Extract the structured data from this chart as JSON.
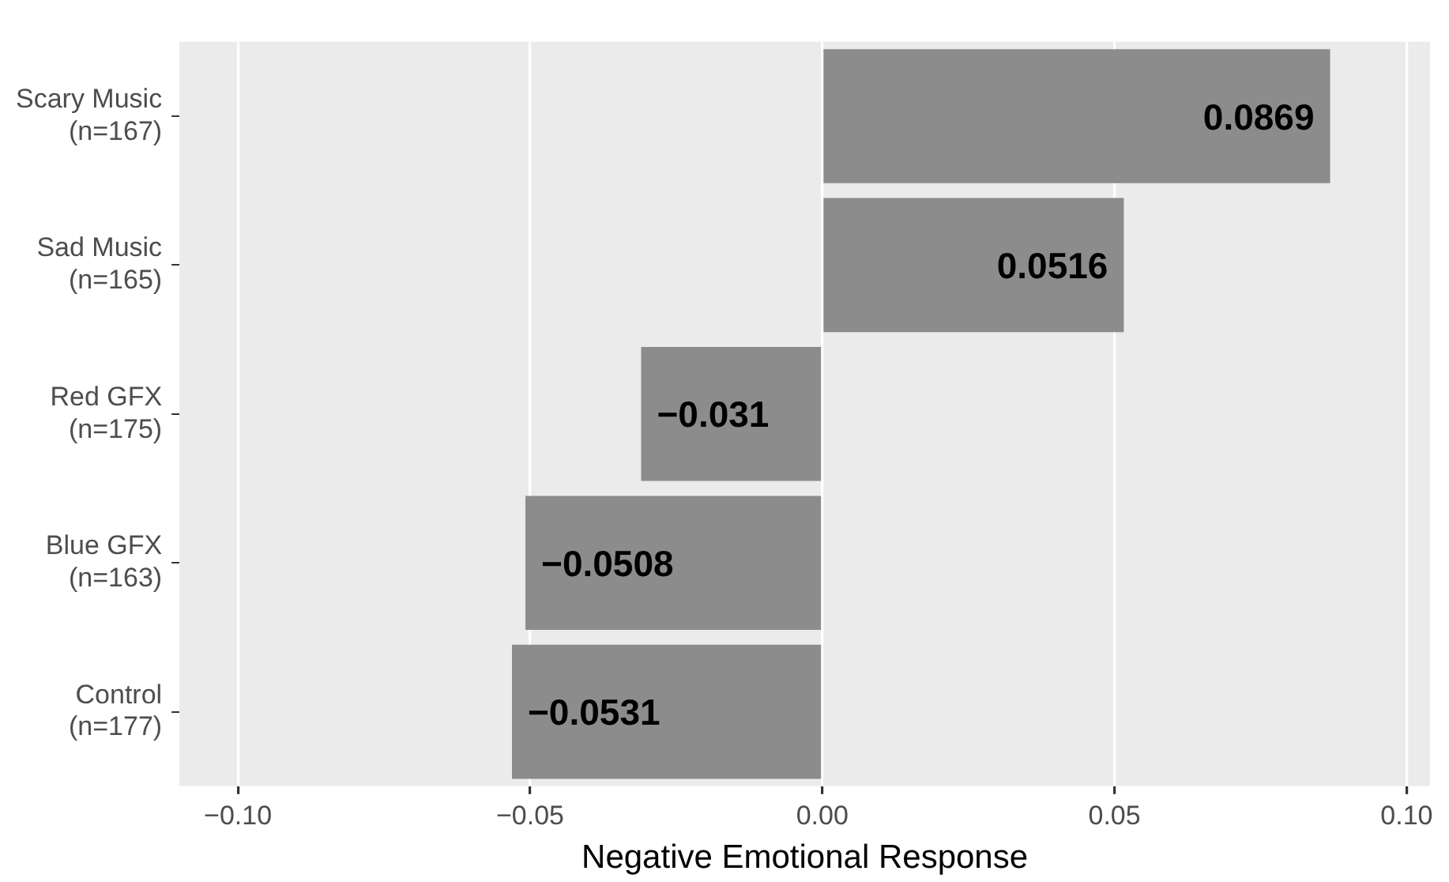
{
  "chart_data": {
    "type": "bar",
    "orientation": "horizontal",
    "xlabel": "Negative Emotional Response",
    "categories": [
      "Scary Music\n(n=167)",
      "Sad Music\n(n=165)",
      "Red GFX\n(n=175)",
      "Blue GFX\n(n=163)",
      "Control\n(n=177)"
    ],
    "values": [
      0.0869,
      0.0516,
      -0.031,
      -0.0508,
      -0.0531
    ],
    "value_labels": [
      "0.0869",
      "0.0516",
      "−0.031",
      "−0.0508",
      "−0.0531"
    ],
    "color": "#8c8c8c",
    "xlim": [
      -0.11,
      0.104
    ],
    "xticks": [
      {
        "value": -0.1,
        "label": "−0.10"
      },
      {
        "value": -0.05,
        "label": "−0.05"
      },
      {
        "value": 0,
        "label": "0.00"
      },
      {
        "value": 0.05,
        "label": "0.05"
      },
      {
        "value": 0.1,
        "label": "0.10"
      }
    ],
    "grid": "x",
    "legend": false
  }
}
